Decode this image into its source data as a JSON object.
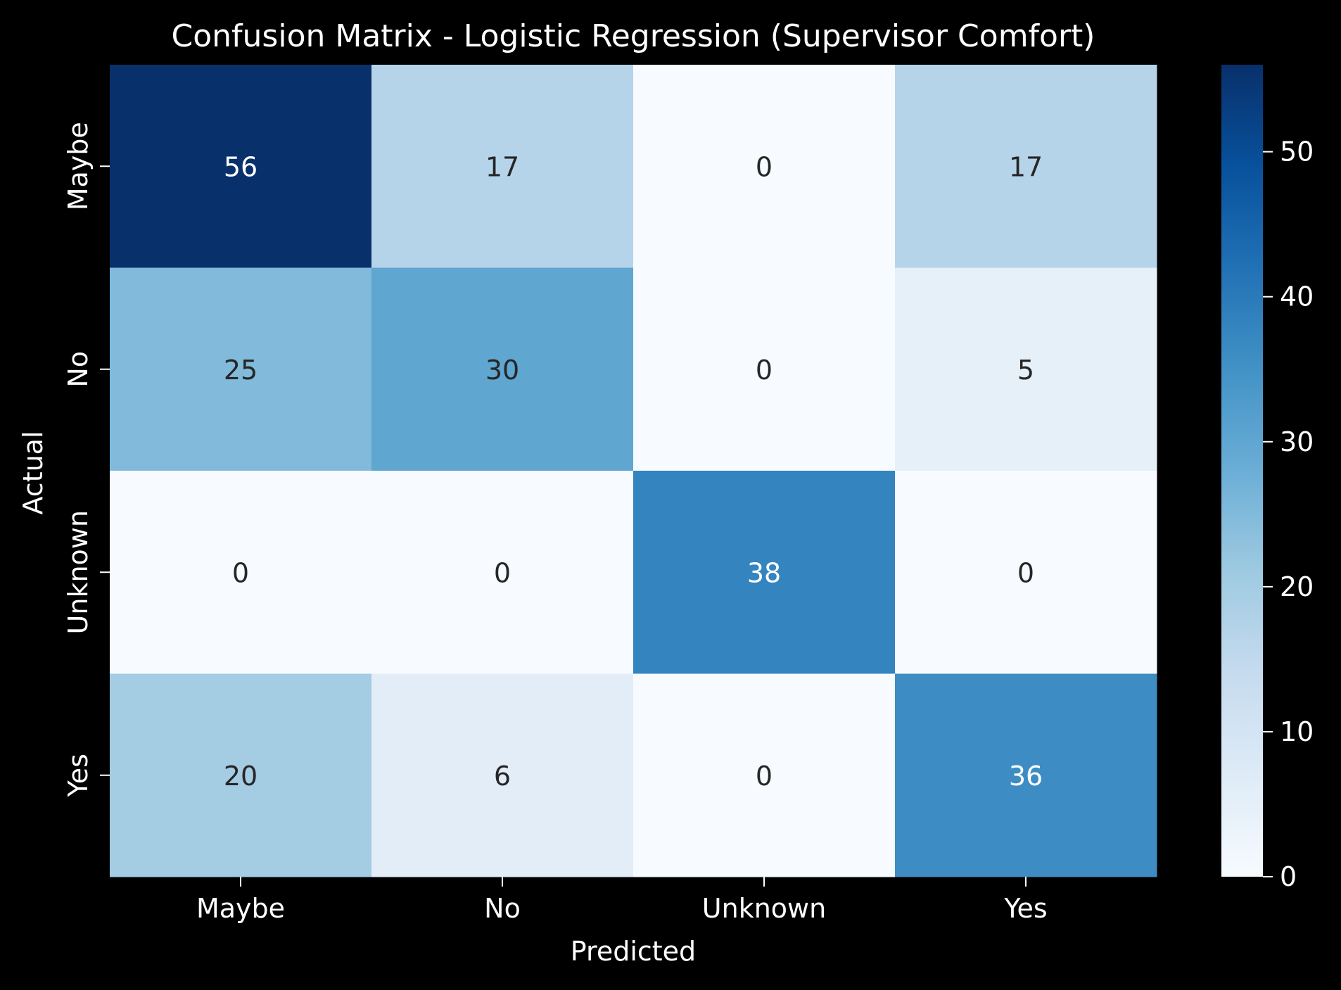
{
  "chart_data": {
    "type": "heatmap",
    "title": "Confusion Matrix - Logistic Regression (Supervisor Comfort)",
    "xlabel": "Predicted",
    "ylabel": "Actual",
    "x_categories": [
      "Maybe",
      "No",
      "Unknown",
      "Yes"
    ],
    "y_categories": [
      "Maybe",
      "No",
      "Unknown",
      "Yes"
    ],
    "values": [
      [
        56,
        17,
        0,
        17
      ],
      [
        25,
        30,
        0,
        5
      ],
      [
        0,
        0,
        38,
        0
      ],
      [
        20,
        6,
        0,
        36
      ]
    ],
    "colorbar": {
      "min": 0,
      "max": 56,
      "ticks": [
        0,
        10,
        20,
        30,
        40,
        50
      ],
      "colormap": "Blues"
    },
    "colors": {
      "background": "#000000",
      "text": "#ffffff",
      "annotation_dark": "#262626",
      "annotation_light": "#ffffff"
    }
  }
}
